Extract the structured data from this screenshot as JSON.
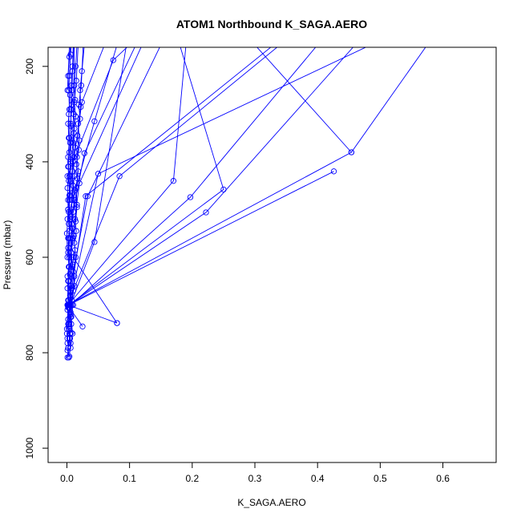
{
  "chart_data": {
    "type": "line",
    "title": "ATOM1 Northbound K_SAGA.AERO",
    "xlabel": "K_SAGA.AERO",
    "ylabel": "Pressure (mbar)",
    "xlim": [
      -0.03,
      0.685
    ],
    "ylim": [
      1030,
      160
    ],
    "y_reversed": true,
    "x_ticks": [
      0.0,
      0.1,
      0.2,
      0.3,
      0.4,
      0.5,
      0.6
    ],
    "x_tick_labels": [
      "0.0",
      "0.1",
      "0.2",
      "0.3",
      "0.4",
      "0.5",
      "0.6"
    ],
    "y_ticks": [
      200,
      400,
      600,
      800,
      1000
    ],
    "y_tick_labels": [
      "200",
      "400",
      "600",
      "800",
      "1000"
    ],
    "grid": false,
    "legend": "none",
    "series_color": "#0000ff",
    "marker": "open-circle",
    "series": [
      {
        "points": [
          [
            0.001,
            810
          ],
          [
            0.002,
            790
          ],
          [
            0.001,
            770
          ],
          [
            0.003,
            750
          ],
          [
            0.002,
            730
          ],
          [
            0.004,
            705
          ],
          [
            0.003,
            700
          ],
          [
            0.005,
            680
          ],
          [
            0.003,
            650
          ],
          [
            0.004,
            620
          ],
          [
            0.002,
            590
          ],
          [
            0.005,
            560
          ],
          [
            0.003,
            530
          ],
          [
            0.002,
            500
          ],
          [
            0.004,
            470
          ],
          [
            0.003,
            440
          ],
          [
            0.002,
            410
          ],
          [
            0.004,
            380
          ],
          [
            0.003,
            350
          ],
          [
            0.002,
            320
          ],
          [
            0.004,
            290
          ],
          [
            0.003,
            250
          ],
          [
            0.002,
            220
          ],
          [
            0.004,
            180
          ],
          [
            0.006,
            155
          ]
        ]
      },
      {
        "points": [
          [
            0.004,
            808
          ],
          [
            0.006,
            780
          ],
          [
            0.005,
            760
          ],
          [
            0.007,
            740
          ],
          [
            0.006,
            720
          ],
          [
            0.008,
            700
          ],
          [
            0.006,
            660
          ],
          [
            0.009,
            620
          ],
          [
            0.007,
            590
          ],
          [
            0.01,
            560
          ],
          [
            0.008,
            530
          ],
          [
            0.01,
            505
          ],
          [
            0.012,
            480
          ],
          [
            0.01,
            450
          ],
          [
            0.009,
            420
          ],
          [
            0.011,
            390
          ],
          [
            0.01,
            360
          ],
          [
            0.012,
            330
          ],
          [
            0.011,
            300
          ],
          [
            0.013,
            270
          ],
          [
            0.012,
            240
          ],
          [
            0.014,
            200
          ],
          [
            0.016,
            155
          ]
        ]
      },
      {
        "points": [
          [
            0.001,
            795
          ],
          [
            0.005,
            770
          ],
          [
            0.003,
            745
          ],
          [
            0.006,
            715
          ],
          [
            0.004,
            700
          ],
          [
            0.007,
            665
          ],
          [
            0.005,
            635
          ],
          [
            0.008,
            600
          ],
          [
            0.006,
            570
          ],
          [
            0.009,
            540
          ],
          [
            0.007,
            515
          ],
          [
            0.011,
            490
          ],
          [
            0.009,
            465
          ],
          [
            0.012,
            430
          ],
          [
            0.01,
            400
          ],
          [
            0.013,
            370
          ],
          [
            0.011,
            340
          ],
          [
            0.014,
            305
          ],
          [
            0.012,
            275
          ],
          [
            0.015,
            230
          ],
          [
            0.018,
            155
          ]
        ]
      },
      {
        "points": [
          [
            0.007,
            758
          ],
          [
            0.006,
            725
          ],
          [
            0.008,
            700
          ],
          [
            0.01,
            670
          ],
          [
            0.012,
            640
          ],
          [
            0.009,
            615
          ],
          [
            0.013,
            585
          ],
          [
            0.011,
            555
          ],
          [
            0.014,
            525
          ],
          [
            0.016,
            495
          ],
          [
            0.013,
            460
          ],
          [
            0.017,
            435
          ],
          [
            0.015,
            405
          ],
          [
            0.019,
            375
          ],
          [
            0.017,
            345
          ],
          [
            0.021,
            310
          ],
          [
            0.019,
            280
          ],
          [
            0.023,
            240
          ],
          [
            0.026,
            155
          ]
        ]
      },
      {
        "points": [
          [
            0.001,
            700
          ],
          [
            0.025,
            745
          ]
        ]
      },
      {
        "points": [
          [
            0.002,
            700
          ],
          [
            0.08,
            738
          ]
        ]
      },
      {
        "points": [
          [
            0.08,
            738
          ],
          [
            0.01,
            600
          ]
        ]
      },
      {
        "points": [
          [
            0.004,
            705
          ],
          [
            0.044,
            568
          ],
          [
            0.095,
            155
          ]
        ]
      },
      {
        "points": [
          [
            0.003,
            700
          ],
          [
            0.222,
            506
          ],
          [
            0.46,
            155
          ]
        ]
      },
      {
        "points": [
          [
            0.002,
            705
          ],
          [
            0.197,
            474
          ],
          [
            0.4,
            155
          ]
        ]
      },
      {
        "points": [
          [
            0.003,
            700
          ],
          [
            0.426,
            420
          ]
        ]
      },
      {
        "points": [
          [
            0.002,
            700
          ],
          [
            0.454,
            380
          ],
          [
            0.575,
            155
          ]
        ]
      },
      {
        "points": [
          [
            0.003,
            700
          ],
          [
            0.25,
            458
          ],
          [
            0.18,
            155
          ]
        ]
      },
      {
        "points": [
          [
            0.002,
            700
          ],
          [
            0.17,
            440
          ],
          [
            0.19,
            155
          ]
        ]
      },
      {
        "points": [
          [
            0.001,
            700
          ],
          [
            0.084,
            430
          ],
          [
            0.34,
            155
          ]
        ]
      },
      {
        "points": [
          [
            0.004,
            700
          ],
          [
            0.05,
            425
          ],
          [
            0.485,
            155
          ]
        ]
      },
      {
        "points": [
          [
            0.454,
            380
          ],
          [
            0.3,
            155
          ]
        ]
      },
      {
        "points": [
          [
            0.003,
            705
          ],
          [
            0.03,
            472
          ],
          [
            0.33,
            155
          ]
        ]
      },
      {
        "points": [
          [
            0.002,
            690
          ],
          [
            0.033,
            472
          ],
          [
            0.15,
            155
          ]
        ]
      },
      {
        "points": [
          [
            0.001,
            640
          ],
          [
            0.02,
            445
          ],
          [
            0.12,
            155
          ]
        ]
      },
      {
        "points": [
          [
            0.002,
            560
          ],
          [
            0.028,
            382
          ],
          [
            0.11,
            155
          ]
        ]
      },
      {
        "points": [
          [
            0.001,
            520
          ],
          [
            0.044,
            315
          ],
          [
            0.08,
            155
          ]
        ]
      },
      {
        "points": [
          [
            0.002,
            480
          ],
          [
            0.024,
            275
          ],
          [
            0.06,
            155
          ]
        ]
      },
      {
        "points": [
          [
            0.001,
            430
          ],
          [
            0.074,
            187
          ],
          [
            0.1,
            155
          ]
        ]
      },
      {
        "points": [
          [
            0.001,
            250
          ],
          [
            0.004,
            155
          ]
        ]
      },
      {
        "points": [
          [
            0.003,
            810
          ],
          [
            0.002,
            790
          ],
          [
            0.004,
            770
          ],
          [
            0.003,
            740
          ],
          [
            0.005,
            700
          ],
          [
            0.008,
            480
          ],
          [
            0.012,
            155
          ]
        ]
      },
      {
        "points": [
          [
            0.001,
            780
          ],
          [
            0.0,
            760
          ],
          [
            0.002,
            740
          ],
          [
            0.001,
            710
          ],
          [
            0.003,
            690
          ],
          [
            0.002,
            650
          ],
          [
            0.004,
            600
          ],
          [
            0.003,
            560
          ],
          [
            0.005,
            520
          ],
          [
            0.004,
            480
          ],
          [
            0.006,
            440
          ],
          [
            0.005,
            400
          ],
          [
            0.007,
            360
          ],
          [
            0.006,
            320
          ],
          [
            0.008,
            280
          ],
          [
            0.007,
            240
          ],
          [
            0.009,
            200
          ],
          [
            0.01,
            155
          ]
        ]
      },
      {
        "points": [
          [
            0.0,
            750
          ],
          [
            0.002,
            700
          ],
          [
            0.001,
            665
          ],
          [
            0.003,
            620
          ],
          [
            0.002,
            580
          ],
          [
            0.004,
            545
          ],
          [
            0.003,
            505
          ],
          [
            0.005,
            470
          ],
          [
            0.004,
            430
          ],
          [
            0.006,
            395
          ],
          [
            0.005,
            360
          ],
          [
            0.007,
            325
          ],
          [
            0.006,
            290
          ],
          [
            0.008,
            250
          ],
          [
            0.009,
            210
          ],
          [
            0.011,
            155
          ]
        ]
      },
      {
        "points": [
          [
            0.001,
            600
          ],
          [
            0.0,
            550
          ],
          [
            0.002,
            500
          ],
          [
            0.001,
            455
          ],
          [
            0.003,
            410
          ],
          [
            0.002,
            390
          ],
          [
            0.004,
            350
          ],
          [
            0.003,
            300
          ],
          [
            0.005,
            260
          ],
          [
            0.004,
            220
          ],
          [
            0.006,
            175
          ],
          [
            0.007,
            155
          ]
        ]
      },
      {
        "points": [
          [
            0.006,
            790
          ],
          [
            0.009,
            760
          ],
          [
            0.007,
            725
          ],
          [
            0.01,
            700
          ],
          [
            0.008,
            690
          ],
          [
            0.012,
            660
          ],
          [
            0.01,
            630
          ],
          [
            0.014,
            600
          ],
          [
            0.012,
            570
          ],
          [
            0.015,
            545
          ],
          [
            0.013,
            520
          ],
          [
            0.016,
            490
          ],
          [
            0.015,
            455
          ],
          [
            0.018,
            420
          ],
          [
            0.016,
            390
          ],
          [
            0.02,
            355
          ],
          [
            0.018,
            320
          ],
          [
            0.022,
            285
          ],
          [
            0.021,
            250
          ],
          [
            0.024,
            210
          ],
          [
            0.028,
            155
          ]
        ]
      }
    ]
  }
}
